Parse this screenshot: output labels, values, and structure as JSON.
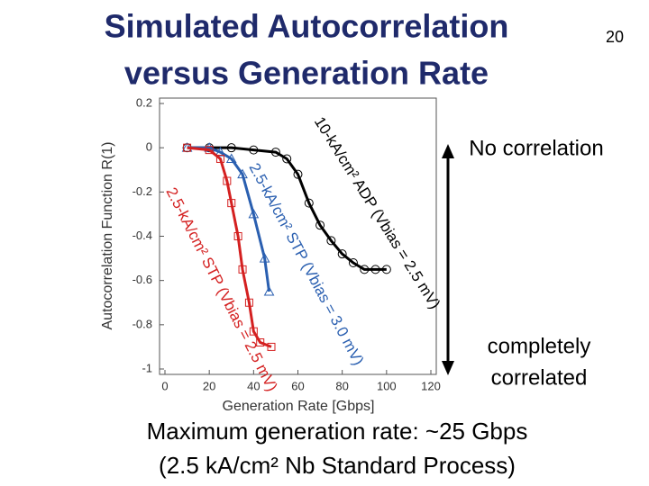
{
  "slide": {
    "title_lines": [
      "Simulated Autocorrelation",
      "versus Generation Rate"
    ],
    "page_number": "20",
    "top_note": "No correlation",
    "bottom_note_lines": [
      "completely",
      "correlated"
    ],
    "footer_lines": [
      "Maximum generation rate: ~25 Gbps",
      "(2.5 kA/cm² Nb Standard Process)"
    ]
  },
  "chart_data": {
    "type": "line",
    "x_label": "Generation Rate [Gbps]",
    "y_label": "Autocorrelation Function R(1)",
    "xlim": [
      0,
      120
    ],
    "xticks": [
      0,
      20,
      40,
      60,
      80,
      100,
      120
    ],
    "ylim": [
      -1,
      0.2
    ],
    "yticks": [
      -1,
      -0.8,
      -0.6,
      -0.4,
      -0.2,
      0,
      0.2
    ],
    "series": [
      {
        "name": "10-kA/cm² ADP (Vbias = 2.5 mV)",
        "color": "#000000",
        "marker": "circle",
        "x": [
          10,
          20,
          30,
          40,
          50,
          55,
          60,
          65,
          70,
          75,
          80,
          85,
          90,
          95,
          100
        ],
        "values": [
          0,
          0,
          0,
          -0.01,
          -0.02,
          -0.05,
          -0.12,
          -0.25,
          -0.35,
          -0.42,
          -0.48,
          -0.52,
          -0.55,
          -0.55,
          -0.55
        ]
      },
      {
        "name": "2.5-kA/cm² STP (Vbias = 3.0 mV)",
        "color": "#2a5fb0",
        "marker": "triangle",
        "x": [
          10,
          20,
          25,
          30,
          35,
          40,
          45,
          47
        ],
        "values": [
          0,
          0,
          -0.02,
          -0.05,
          -0.12,
          -0.3,
          -0.5,
          -0.65
        ]
      },
      {
        "name": "2.5-kA/cm² STP (Vbias = 2.5 mV)",
        "color": "#d42020",
        "marker": "square",
        "x": [
          10,
          20,
          25,
          28,
          30,
          33,
          35,
          38,
          40,
          43,
          48
        ],
        "values": [
          0,
          -0.01,
          -0.05,
          -0.15,
          -0.25,
          -0.4,
          -0.55,
          -0.7,
          -0.83,
          -0.88,
          -0.9
        ]
      }
    ]
  }
}
